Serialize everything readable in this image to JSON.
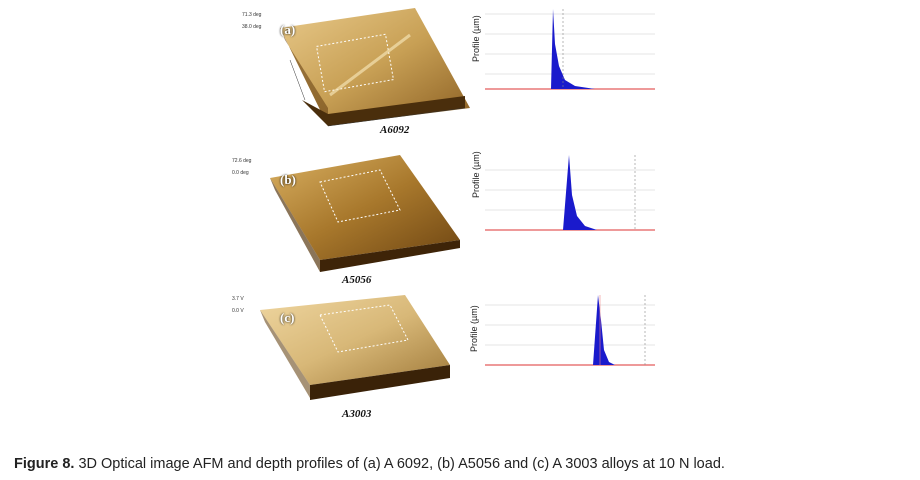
{
  "figure": {
    "caption_label": "Figure 8.",
    "caption_text": " 3D Optical image AFM and depth profiles of (a) A 6092, (b) A5056 and (c) A 3003 alloys at 10 N load."
  },
  "panels": [
    {
      "tag": "(a)",
      "sample": "A6092",
      "scale_top": "71.3 deg",
      "scale_bottom": "38.0 deg",
      "profile_ylabel": "Profile (µm)",
      "colors": {
        "surface": "#c8a055",
        "shadow": "#5a3a12",
        "peak": "#1a1acc"
      }
    },
    {
      "tag": "(b)",
      "sample": "A5056",
      "scale_top": "72.6 deg",
      "scale_bottom": "0.0 deg",
      "profile_ylabel": "Profile (µm)",
      "colors": {
        "surface": "#b98a40",
        "shadow": "#4d300c",
        "peak": "#1a1acc"
      }
    },
    {
      "tag": "(c)",
      "sample": "A3003",
      "scale_top": "3.7 V",
      "scale_bottom": "0.0 V",
      "profile_ylabel": "Profile (µm)",
      "colors": {
        "surface": "#d8b878",
        "shadow": "#6a4a1a",
        "peak": "#1a1acc"
      }
    }
  ]
}
